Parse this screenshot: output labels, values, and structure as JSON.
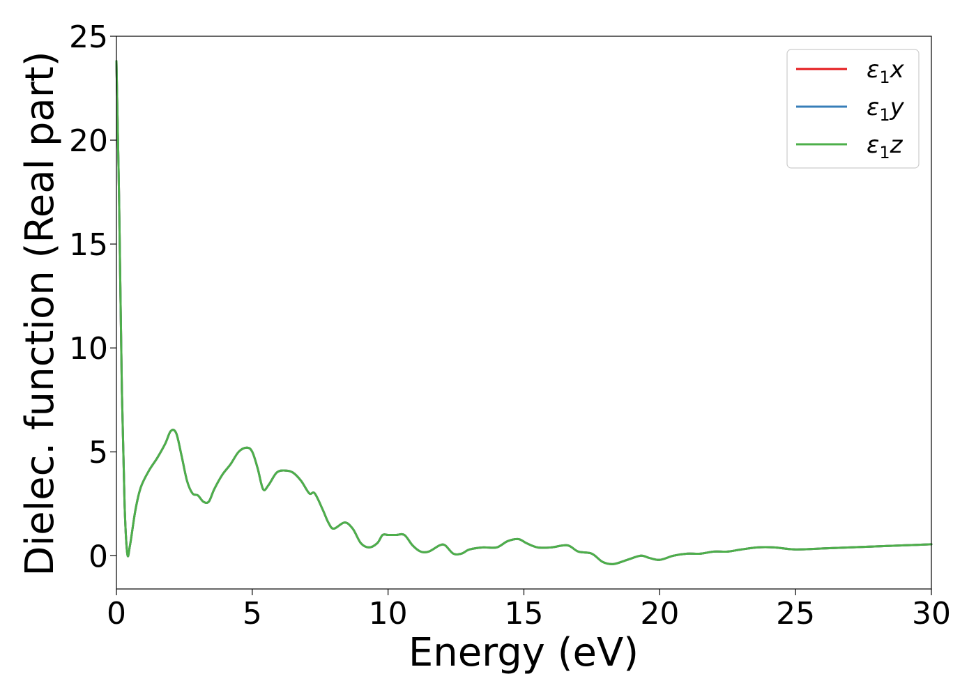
{
  "chart_data": {
    "type": "line",
    "title": "",
    "xlabel": "Energy (eV)",
    "ylabel": "Dielec. function (Real part)",
    "xlim": [
      0,
      30
    ],
    "ylim": [
      -1.6,
      25
    ],
    "xticks": [
      0,
      5,
      10,
      15,
      20,
      25,
      30
    ],
    "yticks": [
      0,
      5,
      10,
      15,
      20,
      25
    ],
    "grid": false,
    "legend_position": "top-right",
    "x": [
      0.0,
      0.1,
      0.2,
      0.3,
      0.4,
      0.5,
      0.7,
      0.9,
      1.2,
      1.5,
      1.8,
      2.0,
      2.2,
      2.4,
      2.6,
      2.8,
      3.0,
      3.2,
      3.4,
      3.6,
      3.9,
      4.2,
      4.5,
      4.8,
      5.0,
      5.2,
      5.4,
      5.6,
      5.9,
      6.2,
      6.5,
      6.8,
      7.1,
      7.3,
      7.6,
      7.8,
      8.0,
      8.4,
      8.7,
      9.0,
      9.3,
      9.6,
      9.8,
      10.0,
      10.3,
      10.6,
      10.9,
      11.2,
      11.5,
      11.9,
      12.1,
      12.4,
      12.7,
      13.0,
      13.5,
      14.0,
      14.4,
      14.8,
      15.1,
      15.5,
      16.0,
      16.6,
      17.0,
      17.5,
      17.9,
      18.3,
      18.8,
      19.3,
      19.6,
      20.0,
      20.5,
      21.0,
      21.5,
      22.0,
      22.5,
      23.0,
      23.6,
      24.2,
      25.0,
      26.0,
      27.0,
      28.0,
      29.0,
      30.0
    ],
    "series": [
      {
        "name": "ε₁x",
        "color": "#e41a1c",
        "values": [
          23.8,
          17.0,
          8.0,
          2.5,
          0.1,
          0.5,
          2.2,
          3.3,
          4.1,
          4.7,
          5.4,
          6.0,
          5.9,
          4.8,
          3.6,
          3.0,
          2.9,
          2.6,
          2.6,
          3.2,
          3.9,
          4.4,
          5.0,
          5.2,
          5.0,
          4.2,
          3.2,
          3.4,
          4.0,
          4.1,
          4.0,
          3.6,
          3.0,
          3.0,
          2.2,
          1.6,
          1.3,
          1.6,
          1.3,
          0.6,
          0.4,
          0.6,
          1.0,
          1.0,
          1.0,
          1.0,
          0.5,
          0.2,
          0.2,
          0.5,
          0.5,
          0.1,
          0.1,
          0.3,
          0.4,
          0.4,
          0.7,
          0.8,
          0.6,
          0.4,
          0.4,
          0.5,
          0.2,
          0.1,
          -0.3,
          -0.4,
          -0.2,
          0.0,
          -0.1,
          -0.2,
          0.0,
          0.1,
          0.1,
          0.2,
          0.2,
          0.3,
          0.4,
          0.4,
          0.3,
          0.35,
          0.4,
          0.45,
          0.5,
          0.55
        ]
      },
      {
        "name": "ε₁y",
        "color": "#377eb8",
        "values": [
          23.8,
          17.0,
          8.0,
          2.5,
          0.1,
          0.5,
          2.2,
          3.3,
          4.1,
          4.7,
          5.4,
          6.0,
          5.9,
          4.8,
          3.6,
          3.0,
          2.9,
          2.6,
          2.6,
          3.2,
          3.9,
          4.4,
          5.0,
          5.2,
          5.0,
          4.2,
          3.2,
          3.4,
          4.0,
          4.1,
          4.0,
          3.6,
          3.0,
          3.0,
          2.2,
          1.6,
          1.3,
          1.6,
          1.3,
          0.6,
          0.4,
          0.6,
          1.0,
          1.0,
          1.0,
          1.0,
          0.5,
          0.2,
          0.2,
          0.5,
          0.5,
          0.1,
          0.1,
          0.3,
          0.4,
          0.4,
          0.7,
          0.8,
          0.6,
          0.4,
          0.4,
          0.5,
          0.2,
          0.1,
          -0.3,
          -0.4,
          -0.2,
          0.0,
          -0.1,
          -0.2,
          0.0,
          0.1,
          0.1,
          0.2,
          0.2,
          0.3,
          0.4,
          0.4,
          0.3,
          0.35,
          0.4,
          0.45,
          0.5,
          0.55
        ]
      },
      {
        "name": "ε₁z",
        "color": "#4daf4a",
        "values": [
          23.8,
          17.0,
          8.0,
          2.5,
          0.1,
          0.5,
          2.2,
          3.3,
          4.1,
          4.7,
          5.4,
          6.0,
          5.9,
          4.8,
          3.6,
          3.0,
          2.9,
          2.6,
          2.6,
          3.2,
          3.9,
          4.4,
          5.0,
          5.2,
          5.0,
          4.2,
          3.2,
          3.4,
          4.0,
          4.1,
          4.0,
          3.6,
          3.0,
          3.0,
          2.2,
          1.6,
          1.3,
          1.6,
          1.3,
          0.6,
          0.4,
          0.6,
          1.0,
          1.0,
          1.0,
          1.0,
          0.5,
          0.2,
          0.2,
          0.5,
          0.5,
          0.1,
          0.1,
          0.3,
          0.4,
          0.4,
          0.7,
          0.8,
          0.6,
          0.4,
          0.4,
          0.5,
          0.2,
          0.1,
          -0.3,
          -0.4,
          -0.2,
          0.0,
          -0.1,
          -0.2,
          0.0,
          0.1,
          0.1,
          0.2,
          0.2,
          0.3,
          0.4,
          0.4,
          0.3,
          0.35,
          0.4,
          0.45,
          0.5,
          0.55
        ]
      }
    ],
    "legend": [
      {
        "symbol": "ε",
        "sub": "1",
        "axis": "x"
      },
      {
        "symbol": "ε",
        "sub": "1",
        "axis": "y"
      },
      {
        "symbol": "ε",
        "sub": "1",
        "axis": "z"
      }
    ]
  }
}
